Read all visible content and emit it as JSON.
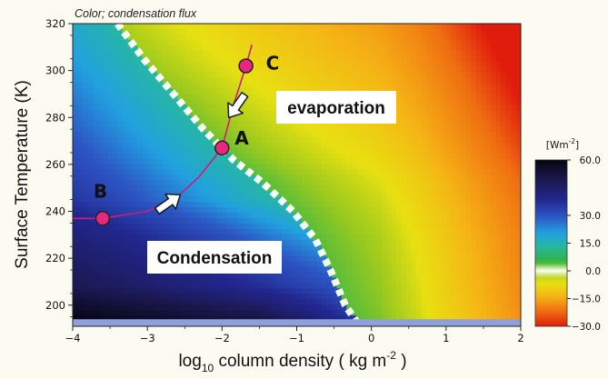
{
  "chart_data": {
    "type": "heatmap",
    "title": "Color; condensation flux",
    "xlabel_parts": {
      "pre": "log",
      "sub": "10",
      "mid": " column density ( kg m",
      "sup": "-2",
      "post": " )"
    },
    "ylabel": "Surface Temperature (K)",
    "xlim": [
      -4,
      2
    ],
    "ylim": [
      191,
      320
    ],
    "x_ticks": [
      -4,
      -3,
      -2,
      -1,
      0,
      1,
      2
    ],
    "x_tick_labels": [
      "−4",
      "−3",
      "−2",
      "−1",
      "0",
      "1",
      "2"
    ],
    "y_ticks": [
      200,
      220,
      240,
      260,
      280,
      300,
      320
    ],
    "y_tick_labels": [
      "200",
      "220",
      "240",
      "260",
      "280",
      "300",
      "320"
    ],
    "zero_flux_boundary": [
      [
        -3.4,
        320
      ],
      [
        -3.05,
        305
      ],
      [
        -2.65,
        290
      ],
      [
        -2.25,
        275
      ],
      [
        -1.85,
        262
      ],
      [
        -1.45,
        252
      ],
      [
        -1.05,
        240
      ],
      [
        -0.75,
        228
      ],
      [
        -0.55,
        215
      ],
      [
        -0.35,
        200
      ],
      [
        -0.2,
        193
      ]
    ],
    "regions": {
      "evaporation": "evaporation",
      "condensation": "Condensation"
    },
    "points": [
      {
        "label": "A",
        "x": -2.0,
        "y": 267
      },
      {
        "label": "B",
        "x": -3.6,
        "y": 237
      },
      {
        "label": "C",
        "x": -1.68,
        "y": 302
      }
    ],
    "trajectory": [
      [
        -4.0,
        237
      ],
      [
        -3.6,
        237
      ],
      [
        -3.0,
        240
      ],
      [
        -2.6,
        246
      ],
      [
        -2.3,
        255
      ],
      [
        -2.0,
        267
      ],
      [
        -1.85,
        285
      ],
      [
        -1.68,
        302
      ],
      [
        -1.6,
        311
      ]
    ],
    "arrows": [
      {
        "x": -2.72,
        "y": 243.5,
        "dir": "up-right"
      },
      {
        "x": -1.8,
        "y": 285,
        "dir": "down-left"
      }
    ],
    "colorbar": {
      "unit_label": {
        "pre": "[Wm",
        "sup": "-2",
        "post": "]"
      },
      "range": [
        -30,
        60
      ],
      "ticks": [
        60,
        30,
        15,
        0,
        -15,
        -30
      ],
      "tick_labels": [
        "60.0",
        "30.0",
        "15.0",
        "0.0",
        "−15.0",
        "−30.0"
      ]
    },
    "colors": {
      "background": "#fbfbf1",
      "bottom_band": "#8e9fd9",
      "trajectory": "#d01a7c",
      "point_fill": "#e8277f"
    }
  }
}
